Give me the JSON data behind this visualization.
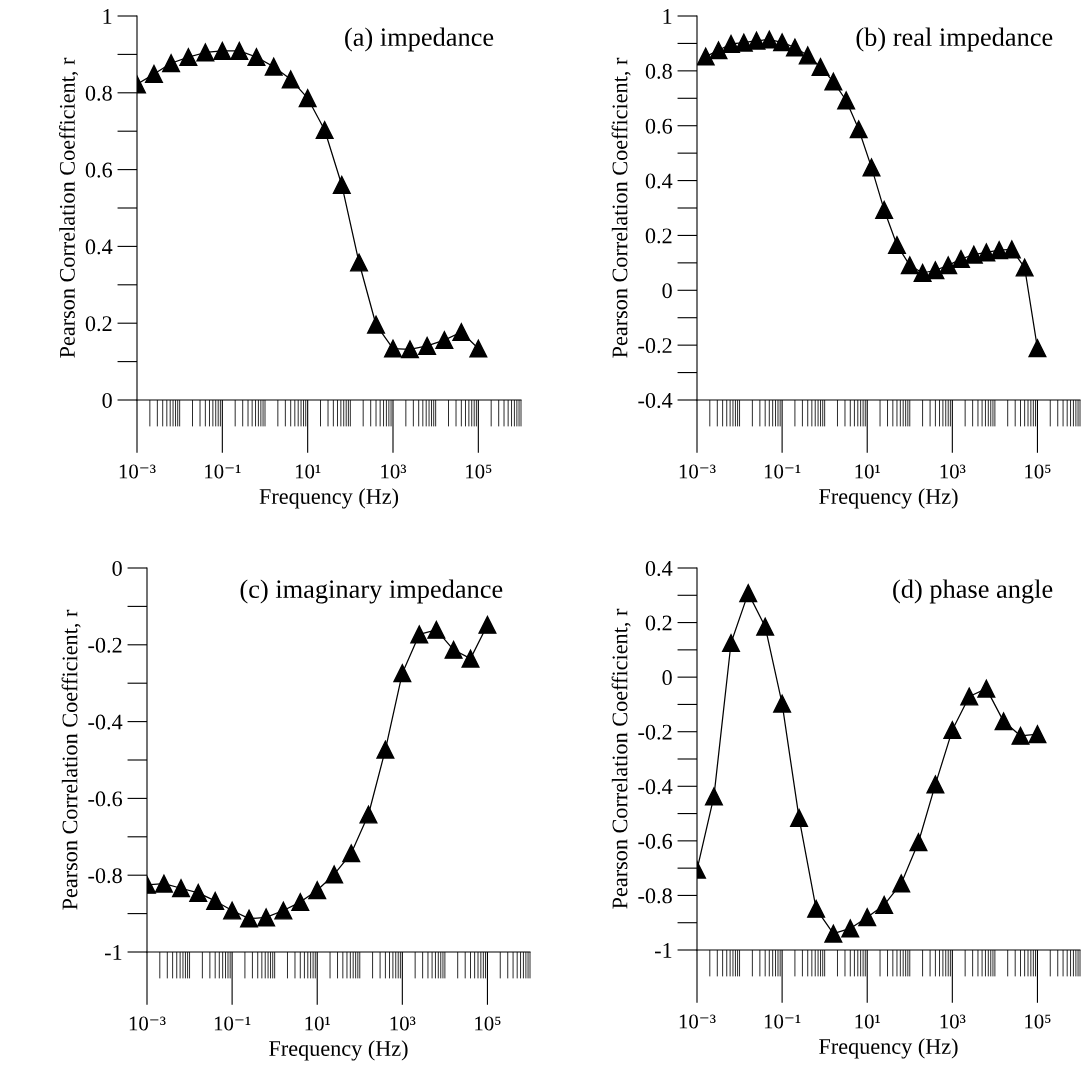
{
  "chart_data": [
    {
      "type": "line",
      "title": "(a) impedance",
      "xlabel": "Frequency (Hz)",
      "ylabel": "Pearson Correlation Coefficient, r",
      "log": "x",
      "marker": "triangle",
      "line_style": "solid",
      "x": [
        0.001,
        0.0025,
        0.0063,
        0.016,
        0.04,
        0.1,
        0.25,
        0.63,
        1.6,
        4,
        10,
        25,
        63,
        160,
        400,
        1000,
        2500,
        6300,
        16000,
        40000,
        100000
      ],
      "series": [
        {
          "color": "#000000",
          "values": [
            0.822,
            0.849,
            0.877,
            0.893,
            0.905,
            0.909,
            0.909,
            0.893,
            0.868,
            0.835,
            0.786,
            0.703,
            0.56,
            0.358,
            0.196,
            0.134,
            0.132,
            0.141,
            0.156,
            0.177,
            0.134
          ]
        }
      ],
      "xlim": [
        0.001,
        1000000
      ],
      "ylim": [
        0,
        1
      ],
      "xticks": [
        {
          "value": 0.001,
          "label": "10⁻³"
        },
        {
          "value": 0.1,
          "label": "10⁻¹"
        },
        {
          "value": 10,
          "label": "10¹"
        },
        {
          "value": 1000,
          "label": "10³"
        },
        {
          "value": 100000,
          "label": "10⁵"
        }
      ],
      "yticks": [
        0,
        0.2,
        0.4,
        0.6,
        0.8,
        1
      ]
    },
    {
      "type": "line",
      "title": "(b) real impedance",
      "xlabel": "Frequency (Hz)",
      "ylabel": "Pearson Correlation Coefficient, r",
      "log": "x",
      "marker": "triangle",
      "line_style": "solid",
      "x": [
        0.0016,
        0.0032,
        0.0063,
        0.0126,
        0.025,
        0.05,
        0.1,
        0.2,
        0.4,
        0.8,
        1.6,
        3.2,
        6.3,
        12.6,
        25,
        50,
        100,
        200,
        400,
        800,
        1600,
        3200,
        6300,
        12600,
        25000,
        50000,
        100000
      ],
      "series": [
        {
          "color": "#000000",
          "values": [
            0.852,
            0.875,
            0.898,
            0.903,
            0.91,
            0.914,
            0.904,
            0.885,
            0.856,
            0.814,
            0.761,
            0.692,
            0.587,
            0.448,
            0.293,
            0.165,
            0.091,
            0.063,
            0.073,
            0.091,
            0.114,
            0.13,
            0.138,
            0.146,
            0.149,
            0.083,
            -0.211
          ]
        }
      ],
      "xlim": [
        0.001,
        1000000
      ],
      "ylim": [
        -0.4,
        1
      ],
      "xticks": [
        {
          "value": 0.001,
          "label": "10⁻³"
        },
        {
          "value": 0.1,
          "label": "10⁻¹"
        },
        {
          "value": 10,
          "label": "10¹"
        },
        {
          "value": 1000,
          "label": "10³"
        },
        {
          "value": 100000,
          "label": "10⁵"
        }
      ],
      "yticks": [
        -0.4,
        -0.2,
        0,
        0.2,
        0.4,
        0.6,
        0.8,
        1
      ]
    },
    {
      "type": "line",
      "title": "(c) imaginary impedance",
      "xlabel": "Frequency (Hz)",
      "ylabel": "Pearson Correlation Coefficient, r",
      "log": "x",
      "marker": "triangle",
      "line_style": "solid",
      "x": [
        0.001,
        0.0025,
        0.0063,
        0.016,
        0.04,
        0.1,
        0.25,
        0.63,
        1.6,
        4,
        10,
        25,
        63,
        160,
        400,
        1000,
        2500,
        6300,
        16000,
        40000,
        100000
      ],
      "series": [
        {
          "color": "#000000",
          "values": [
            -0.825,
            -0.822,
            -0.834,
            -0.846,
            -0.867,
            -0.892,
            -0.913,
            -0.91,
            -0.892,
            -0.87,
            -0.839,
            -0.798,
            -0.743,
            -0.642,
            -0.473,
            -0.274,
            -0.173,
            -0.161,
            -0.213,
            -0.236,
            -0.148
          ]
        }
      ],
      "xlim": [
        0.001,
        1000000
      ],
      "ylim": [
        -1,
        0
      ],
      "xticks": [
        {
          "value": 0.001,
          "label": "10⁻³"
        },
        {
          "value": 0.1,
          "label": "10⁻¹"
        },
        {
          "value": 10,
          "label": "10¹"
        },
        {
          "value": 1000,
          "label": "10³"
        },
        {
          "value": 100000,
          "label": "10⁵"
        }
      ],
      "yticks": [
        -1,
        -0.8,
        -0.6,
        -0.4,
        -0.2,
        0
      ]
    },
    {
      "type": "line",
      "title": "(d) phase angle",
      "xlabel": "Frequency (Hz)",
      "ylabel": "Pearson Correlation Coefficient, r",
      "log": "x",
      "marker": "triangle",
      "line_style": "solid",
      "x": [
        0.001,
        0.0025,
        0.0063,
        0.016,
        0.04,
        0.1,
        0.25,
        0.63,
        1.6,
        4,
        10,
        25,
        63,
        160,
        400,
        1000,
        2500,
        6300,
        16000,
        40000,
        100000
      ],
      "series": [
        {
          "color": "#000000",
          "values": [
            -0.706,
            -0.437,
            0.125,
            0.308,
            0.185,
            -0.097,
            -0.516,
            -0.849,
            -0.94,
            -0.921,
            -0.88,
            -0.835,
            -0.756,
            -0.605,
            -0.393,
            -0.194,
            -0.071,
            -0.042,
            -0.162,
            -0.215,
            -0.209
          ]
        }
      ],
      "xlim": [
        0.001,
        1000000
      ],
      "ylim": [
        -1,
        0.4
      ],
      "xticks": [
        {
          "value": 0.001,
          "label": "10⁻³"
        },
        {
          "value": 0.1,
          "label": "10⁻¹"
        },
        {
          "value": 10,
          "label": "10¹"
        },
        {
          "value": 1000,
          "label": "10³"
        },
        {
          "value": 100000,
          "label": "10⁵"
        }
      ],
      "yticks": [
        -1,
        -0.8,
        -0.6,
        -0.4,
        -0.2,
        0,
        0.2,
        0.4
      ]
    }
  ]
}
